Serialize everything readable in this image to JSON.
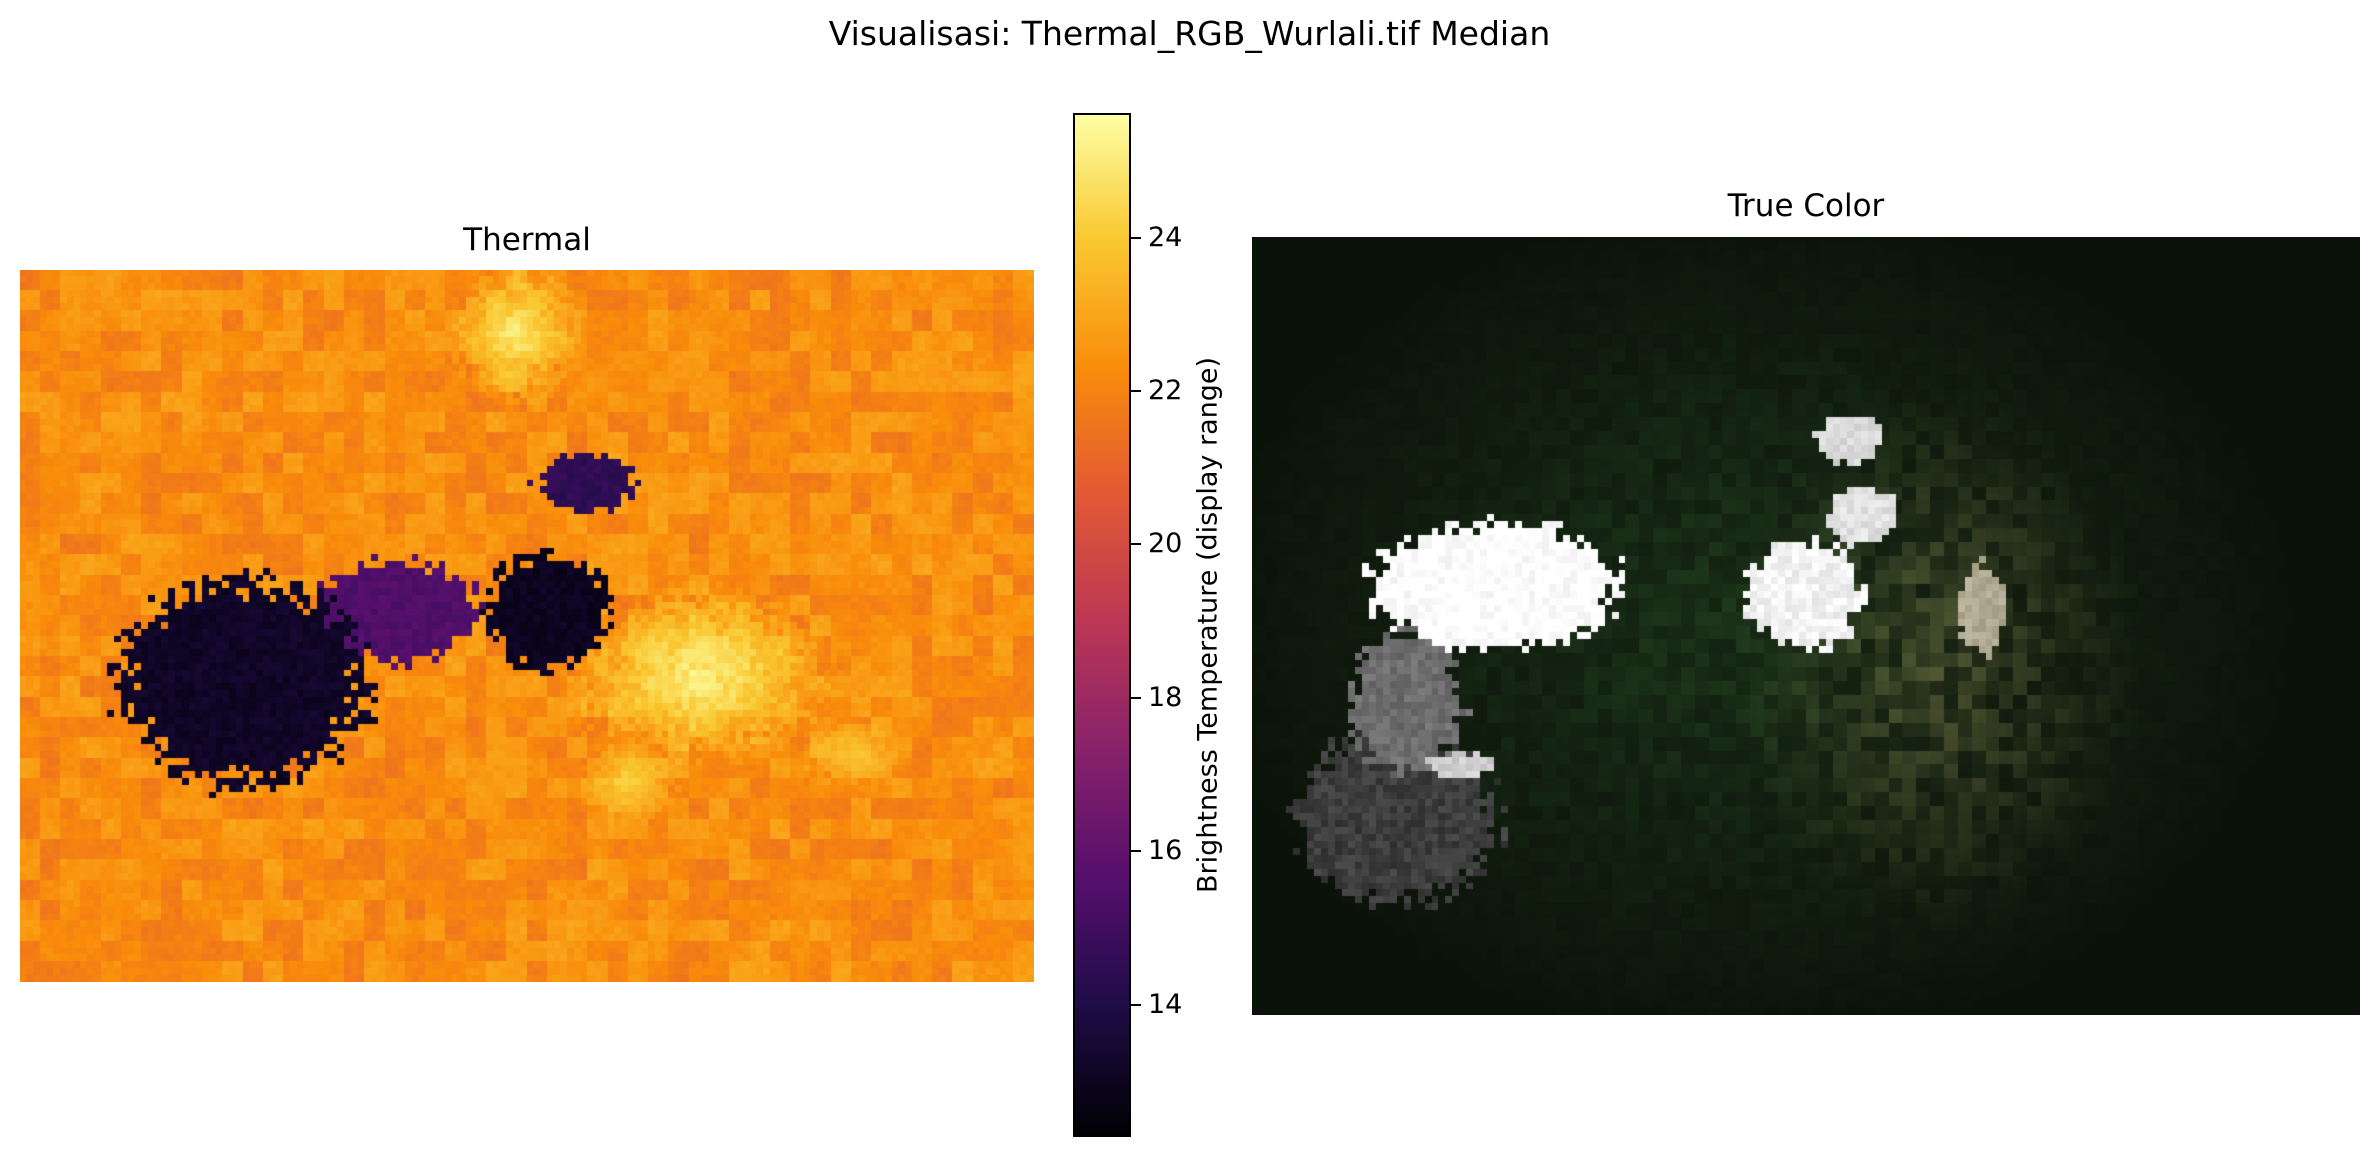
{
  "chart_data": [
    {
      "type": "heatmap",
      "title": "Thermal",
      "colormap": "inferno",
      "colorbar": {
        "label": "Brightness Temperature (display range)",
        "range": [
          12.3,
          25.6
        ],
        "ticks": [
          14,
          16,
          18,
          20,
          22,
          24
        ]
      },
      "features": [
        {
          "kind": "cold",
          "value": 13.2,
          "cx": 0.22,
          "cy": 0.58,
          "rx": 0.12,
          "ry": 0.14
        },
        {
          "kind": "cold",
          "value": 13.0,
          "cx": 0.52,
          "cy": 0.48,
          "rx": 0.06,
          "ry": 0.08
        },
        {
          "kind": "cold",
          "value": 15.5,
          "cx": 0.37,
          "cy": 0.48,
          "rx": 0.08,
          "ry": 0.07
        },
        {
          "kind": "cold",
          "value": 14.5,
          "cx": 0.56,
          "cy": 0.3,
          "rx": 0.05,
          "ry": 0.04
        },
        {
          "kind": "warm",
          "value": 25.2,
          "cx": 0.67,
          "cy": 0.57,
          "rx": 0.13,
          "ry": 0.12
        },
        {
          "kind": "warm",
          "value": 25.0,
          "cx": 0.49,
          "cy": 0.09,
          "rx": 0.06,
          "ry": 0.1
        },
        {
          "kind": "warm",
          "value": 24.3,
          "cx": 0.6,
          "cy": 0.72,
          "rx": 0.05,
          "ry": 0.06
        },
        {
          "kind": "warm",
          "value": 24.0,
          "cx": 0.82,
          "cy": 0.68,
          "rx": 0.05,
          "ry": 0.05
        }
      ]
    },
    {
      "type": "heatmap",
      "title": "True Color",
      "colormap": "rgb",
      "features": [
        {
          "kind": "bright",
          "color": "#ffffff",
          "cx": 0.22,
          "cy": 0.45,
          "rx": 0.11,
          "ry": 0.08
        },
        {
          "kind": "bright",
          "color": "#f2f2f2",
          "cx": 0.5,
          "cy": 0.46,
          "rx": 0.05,
          "ry": 0.07
        },
        {
          "kind": "bright",
          "color": "#e0e0e0",
          "cx": 0.55,
          "cy": 0.36,
          "rx": 0.03,
          "ry": 0.04
        },
        {
          "kind": "bright",
          "color": "#d8d8d8",
          "cx": 0.54,
          "cy": 0.26,
          "rx": 0.03,
          "ry": 0.03
        },
        {
          "kind": "bright",
          "color": "#cfcfcf",
          "cx": 0.19,
          "cy": 0.68,
          "rx": 0.03,
          "ry": 0.015
        },
        {
          "kind": "bright",
          "color": "#b0aa92",
          "cx": 0.66,
          "cy": 0.48,
          "rx": 0.02,
          "ry": 0.06
        },
        {
          "kind": "grey",
          "color": "#6e6e6e",
          "cx": 0.14,
          "cy": 0.6,
          "rx": 0.05,
          "ry": 0.09
        },
        {
          "kind": "grey",
          "color": "#3d3d3d",
          "cx": 0.13,
          "cy": 0.75,
          "rx": 0.09,
          "ry": 0.11
        }
      ],
      "background": "#0b1209",
      "vegetation": "#1a3018"
    }
  ],
  "suptitle": "Visualisasi: Thermal_RGB_Wurlali.tif Median"
}
